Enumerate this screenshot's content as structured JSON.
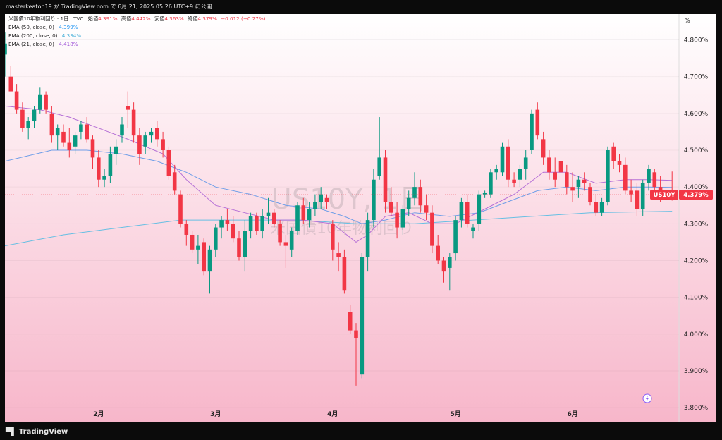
{
  "header": {
    "text": "masterkeaton19 が TradingView.com で 6月 21, 2025 05:26 UTC+9 に公開"
  },
  "legend": {
    "title": "米国債10年物利回り · 1日 · TVC",
    "ohlc": [
      {
        "label": "始値",
        "value": "4.391%"
      },
      {
        "label": "高値",
        "value": "4.442%"
      },
      {
        "label": "安値",
        "value": "4.363%"
      },
      {
        "label": "終値",
        "value": "4.379%"
      }
    ],
    "change": "−0.012 (−0.27%)",
    "indicators": [
      {
        "label": "EMA (50, close, 0)",
        "value": "4.399%",
        "color": "#2196f3"
      },
      {
        "label": "EMA (200, close, 0)",
        "value": "4.334%",
        "color": "#4fb3d9"
      },
      {
        "label": "EMA (21, close, 0)",
        "value": "4.418%",
        "color": "#9c4fd6"
      }
    ]
  },
  "watermark": {
    "symbol": "US10Y, 1日",
    "name": "米国債10年物利回り"
  },
  "price_scale": {
    "unit": "%",
    "symbol_tag": "US10Y",
    "last_price": "4.379%"
  },
  "footer": {
    "brand": "TradingView"
  },
  "colors": {
    "up": "#089981",
    "down": "#f23645",
    "ema21": "#b56fd6",
    "ema50": "#6f9ee8",
    "ema200": "#66bfe3",
    "bg_top": "#ffffff",
    "bg_bottom": "#f7b6ca"
  },
  "chart_data": {
    "type": "candlestick",
    "title": "米国債10年物利回り · 1日 · TVC",
    "ylim": [
      3.76,
      4.87
    ],
    "yticks": [
      "4.800%",
      "4.700%",
      "4.600%",
      "4.500%",
      "4.400%",
      "4.300%",
      "4.200%",
      "4.100%",
      "4.000%",
      "3.900%",
      "3.800%"
    ],
    "xticks": [
      {
        "label": "2月",
        "index": 16
      },
      {
        "label": "3月",
        "index": 36
      },
      {
        "label": "4月",
        "index": 56
      },
      {
        "label": "5月",
        "index": 77
      },
      {
        "label": "6月",
        "index": 97
      }
    ],
    "last_index": 114,
    "candles": [
      [
        0,
        4.76,
        4.82,
        4.7,
        4.79
      ],
      [
        1,
        4.7,
        4.73,
        4.66,
        4.66
      ],
      [
        2,
        4.66,
        4.68,
        4.6,
        4.61
      ],
      [
        3,
        4.61,
        4.63,
        4.55,
        4.56
      ],
      [
        4,
        4.56,
        4.59,
        4.53,
        4.58
      ],
      [
        5,
        4.58,
        4.62,
        4.56,
        4.61
      ],
      [
        6,
        4.61,
        4.67,
        4.6,
        4.65
      ],
      [
        7,
        4.65,
        4.66,
        4.6,
        4.61
      ],
      [
        8,
        4.6,
        4.62,
        4.52,
        4.54
      ],
      [
        9,
        4.54,
        4.57,
        4.5,
        4.56
      ],
      [
        10,
        4.55,
        4.57,
        4.51,
        4.52
      ],
      [
        11,
        4.52,
        4.56,
        4.48,
        4.5
      ],
      [
        12,
        4.51,
        4.55,
        4.49,
        4.54
      ],
      [
        13,
        4.55,
        4.58,
        4.53,
        4.57
      ],
      [
        14,
        4.57,
        4.59,
        4.52,
        4.53
      ],
      [
        15,
        4.53,
        4.54,
        4.45,
        4.48
      ],
      [
        16,
        4.48,
        4.5,
        4.4,
        4.42
      ],
      [
        17,
        4.42,
        4.45,
        4.4,
        4.43
      ],
      [
        18,
        4.43,
        4.51,
        4.41,
        4.49
      ],
      [
        19,
        4.49,
        4.53,
        4.46,
        4.51
      ],
      [
        20,
        4.54,
        4.59,
        4.52,
        4.57
      ],
      [
        21,
        4.62,
        4.66,
        4.56,
        4.61
      ],
      [
        22,
        4.61,
        4.63,
        4.52,
        4.54
      ],
      [
        23,
        4.54,
        4.56,
        4.46,
        4.49
      ],
      [
        24,
        4.51,
        4.55,
        4.49,
        4.54
      ],
      [
        25,
        4.54,
        4.56,
        4.52,
        4.55
      ],
      [
        26,
        4.56,
        4.58,
        4.51,
        4.53
      ],
      [
        27,
        4.53,
        4.55,
        4.48,
        4.5
      ],
      [
        28,
        4.5,
        4.51,
        4.42,
        4.43
      ],
      [
        29,
        4.44,
        4.46,
        4.38,
        4.39
      ],
      [
        30,
        4.38,
        4.39,
        4.29,
        4.3
      ],
      [
        31,
        4.3,
        4.31,
        4.24,
        4.27
      ],
      [
        32,
        4.27,
        4.28,
        4.22,
        4.23
      ],
      [
        33,
        4.23,
        4.27,
        4.19,
        4.24
      ],
      [
        34,
        4.25,
        4.26,
        4.16,
        4.17
      ],
      [
        35,
        4.17,
        4.24,
        4.11,
        4.23
      ],
      [
        36,
        4.23,
        4.3,
        4.21,
        4.29
      ],
      [
        37,
        4.29,
        4.32,
        4.26,
        4.31
      ],
      [
        38,
        4.31,
        4.34,
        4.28,
        4.3
      ],
      [
        39,
        4.3,
        4.32,
        4.25,
        4.26
      ],
      [
        40,
        4.26,
        4.28,
        4.2,
        4.21
      ],
      [
        41,
        4.21,
        4.31,
        4.17,
        4.28
      ],
      [
        42,
        4.28,
        4.33,
        4.26,
        4.32
      ],
      [
        43,
        4.32,
        4.33,
        4.27,
        4.28
      ],
      [
        44,
        4.28,
        4.34,
        4.26,
        4.32
      ],
      [
        45,
        4.32,
        4.37,
        4.3,
        4.33
      ],
      [
        46,
        4.33,
        4.34,
        4.29,
        4.3
      ],
      [
        47,
        4.3,
        4.31,
        4.24,
        4.25
      ],
      [
        48,
        4.25,
        4.27,
        4.18,
        4.24
      ],
      [
        49,
        4.23,
        4.29,
        4.21,
        4.28
      ],
      [
        50,
        4.28,
        4.36,
        4.27,
        4.35
      ],
      [
        51,
        4.35,
        4.37,
        4.3,
        4.31
      ],
      [
        52,
        4.31,
        4.36,
        4.29,
        4.34
      ],
      [
        53,
        4.34,
        4.38,
        4.32,
        4.36
      ],
      [
        54,
        4.36,
        4.4,
        4.34,
        4.38
      ],
      [
        55,
        4.37,
        4.38,
        4.34,
        4.36
      ],
      [
        56,
        4.3,
        4.31,
        4.2,
        4.23
      ],
      [
        57,
        4.22,
        4.25,
        4.17,
        4.21
      ],
      [
        58,
        4.21,
        4.23,
        4.11,
        4.12
      ],
      [
        59,
        4.06,
        4.08,
        4.0,
        4.01
      ],
      [
        60,
        4.01,
        4.03,
        3.86,
        3.99
      ],
      [
        61,
        3.89,
        4.22,
        3.88,
        4.21
      ],
      [
        62,
        4.21,
        4.33,
        4.17,
        4.31
      ],
      [
        63,
        4.31,
        4.45,
        4.29,
        4.42
      ],
      [
        64,
        4.43,
        4.59,
        4.42,
        4.48
      ],
      [
        65,
        4.48,
        4.5,
        4.33,
        4.36
      ],
      [
        66,
        4.36,
        4.4,
        4.32,
        4.33
      ],
      [
        67,
        4.33,
        4.36,
        4.26,
        4.29
      ],
      [
        68,
        4.29,
        4.35,
        4.27,
        4.34
      ],
      [
        69,
        4.34,
        4.39,
        4.32,
        4.37
      ],
      [
        70,
        4.37,
        4.44,
        4.35,
        4.4
      ],
      [
        71,
        4.4,
        4.42,
        4.33,
        4.35
      ],
      [
        72,
        4.35,
        4.38,
        4.31,
        4.33
      ],
      [
        73,
        4.33,
        4.35,
        4.22,
        4.24
      ],
      [
        74,
        4.24,
        4.27,
        4.19,
        4.2
      ],
      [
        75,
        4.2,
        4.21,
        4.14,
        4.17
      ],
      [
        76,
        4.18,
        4.22,
        4.12,
        4.21
      ],
      [
        77,
        4.22,
        4.32,
        4.2,
        4.31
      ],
      [
        78,
        4.31,
        4.37,
        4.29,
        4.36
      ],
      [
        79,
        4.36,
        4.38,
        4.29,
        4.3
      ],
      [
        80,
        4.28,
        4.3,
        4.26,
        4.29
      ],
      [
        81,
        4.3,
        4.39,
        4.28,
        4.38
      ],
      [
        82,
        4.38,
        4.39,
        4.37,
        4.385
      ],
      [
        83,
        4.38,
        4.45,
        4.37,
        4.44
      ],
      [
        84,
        4.44,
        4.46,
        4.42,
        4.45
      ],
      [
        85,
        4.44,
        4.52,
        4.43,
        4.51
      ],
      [
        86,
        4.51,
        4.53,
        4.4,
        4.42
      ],
      [
        87,
        4.42,
        4.44,
        4.4,
        4.41
      ],
      [
        88,
        4.42,
        4.46,
        4.4,
        4.45
      ],
      [
        89,
        4.45,
        4.5,
        4.42,
        4.48
      ],
      [
        90,
        4.5,
        4.61,
        4.49,
        4.6
      ],
      [
        91,
        4.61,
        4.63,
        4.53,
        4.54
      ],
      [
        92,
        4.53,
        4.55,
        4.46,
        4.48
      ],
      [
        93,
        4.48,
        4.5,
        4.42,
        4.44
      ],
      [
        94,
        4.44,
        4.48,
        4.4,
        4.42
      ],
      [
        95,
        4.47,
        4.51,
        4.42,
        4.44
      ],
      [
        96,
        4.44,
        4.46,
        4.38,
        4.4
      ],
      [
        97,
        4.4,
        4.44,
        4.36,
        4.39
      ],
      [
        98,
        4.4,
        4.43,
        4.37,
        4.42
      ],
      [
        99,
        4.42,
        4.44,
        4.39,
        4.41
      ],
      [
        100,
        4.4,
        4.41,
        4.35,
        4.36
      ],
      [
        101,
        4.36,
        4.38,
        4.32,
        4.33
      ],
      [
        102,
        4.33,
        4.37,
        4.32,
        4.36
      ],
      [
        103,
        4.36,
        4.51,
        4.35,
        4.5
      ],
      [
        104,
        4.51,
        4.52,
        4.45,
        4.47
      ],
      [
        105,
        4.47,
        4.49,
        4.44,
        4.46
      ],
      [
        106,
        4.46,
        4.48,
        4.38,
        4.39
      ],
      [
        107,
        4.39,
        4.42,
        4.36,
        4.38
      ],
      [
        108,
        4.39,
        4.41,
        4.32,
        4.34
      ],
      [
        109,
        4.34,
        4.42,
        4.32,
        4.41
      ],
      [
        110,
        4.41,
        4.46,
        4.39,
        4.45
      ],
      [
        111,
        4.44,
        4.45,
        4.38,
        4.4
      ],
      [
        112,
        4.4,
        4.43,
        4.36,
        4.39
      ],
      [
        114,
        4.391,
        4.442,
        4.363,
        4.379
      ]
    ],
    "ema21": [
      [
        0,
        4.62
      ],
      [
        6,
        4.61
      ],
      [
        11,
        4.59
      ],
      [
        16,
        4.56
      ],
      [
        21,
        4.53
      ],
      [
        27,
        4.49
      ],
      [
        31,
        4.42
      ],
      [
        36,
        4.35
      ],
      [
        41,
        4.33
      ],
      [
        46,
        4.31
      ],
      [
        51,
        4.31
      ],
      [
        56,
        4.3
      ],
      [
        60,
        4.25
      ],
      [
        62,
        4.27
      ],
      [
        65,
        4.32
      ],
      [
        69,
        4.33
      ],
      [
        73,
        4.3
      ],
      [
        77,
        4.3
      ],
      [
        82,
        4.34
      ],
      [
        87,
        4.38
      ],
      [
        92,
        4.44
      ],
      [
        96,
        4.44
      ],
      [
        101,
        4.41
      ],
      [
        106,
        4.42
      ],
      [
        110,
        4.42
      ],
      [
        114,
        4.418
      ]
    ],
    "ema50": [
      [
        0,
        4.47
      ],
      [
        8,
        4.5
      ],
      [
        14,
        4.5
      ],
      [
        20,
        4.49
      ],
      [
        26,
        4.47
      ],
      [
        31,
        4.44
      ],
      [
        36,
        4.4
      ],
      [
        42,
        4.38
      ],
      [
        48,
        4.35
      ],
      [
        54,
        4.34
      ],
      [
        58,
        4.32
      ],
      [
        61,
        4.3
      ],
      [
        65,
        4.31
      ],
      [
        70,
        4.33
      ],
      [
        76,
        4.32
      ],
      [
        81,
        4.33
      ],
      [
        86,
        4.36
      ],
      [
        91,
        4.39
      ],
      [
        96,
        4.4
      ],
      [
        101,
        4.39
      ],
      [
        106,
        4.4
      ],
      [
        110,
        4.4
      ],
      [
        114,
        4.399
      ]
    ],
    "ema200": [
      [
        0,
        4.24
      ],
      [
        10,
        4.27
      ],
      [
        20,
        4.29
      ],
      [
        30,
        4.31
      ],
      [
        40,
        4.31
      ],
      [
        50,
        4.31
      ],
      [
        60,
        4.3
      ],
      [
        70,
        4.3
      ],
      [
        80,
        4.31
      ],
      [
        90,
        4.32
      ],
      [
        100,
        4.33
      ],
      [
        114,
        4.334
      ]
    ]
  }
}
